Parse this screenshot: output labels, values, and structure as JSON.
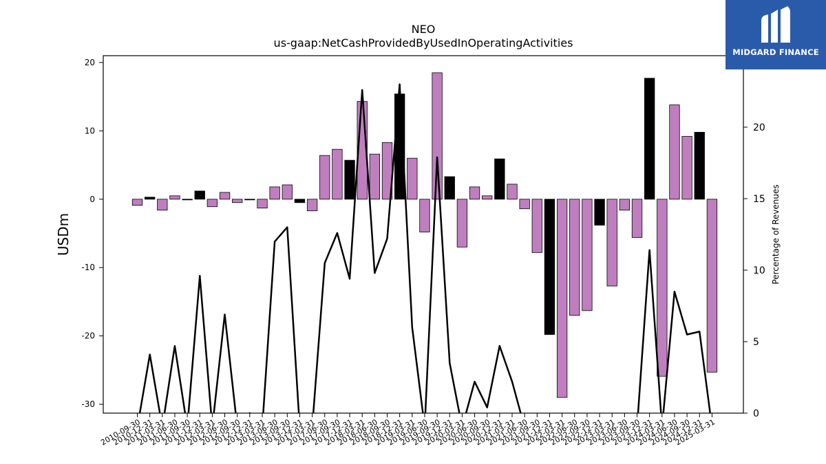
{
  "brand": {
    "name": "MIDGARD FINANCE",
    "bg_color": "#2a5bab"
  },
  "chart_data": {
    "type": "bar",
    "title": "NEO",
    "subtitle": "us-gaap:NetCashProvidedByUsedInOperatingActivities",
    "ylabel": "USDm",
    "y2label": "Percentage of Revenues",
    "ylim": [
      -31.3,
      21
    ],
    "y2lim": [
      0,
      25
    ],
    "yticks": [
      -30,
      -20,
      -10,
      0,
      10,
      20
    ],
    "y2ticks": [
      0,
      5,
      10,
      15,
      20
    ],
    "grid": false,
    "colors": {
      "annual": "#000000",
      "quarter": "#bf7fbf",
      "line": "#000000"
    },
    "categories": [
      "2010-09-30",
      "2010-12-31",
      "2011-03-31",
      "2011-06-30",
      "2011-09-30",
      "2011-12-31",
      "2012-03-31",
      "2012-06-30",
      "2012-09-30",
      "2012-12-31",
      "2013-03-31",
      "2013-06-30",
      "2013-09-30",
      "2013-12-31",
      "2017-03-31",
      "2017-06-30",
      "2017-09-30",
      "2017-12-31",
      "2018-03-31",
      "2018-06-30",
      "2018-09-30",
      "2018-12-31",
      "2019-03-31",
      "2019-06-30",
      "2019-09-30",
      "2019-12-31",
      "2020-03-31",
      "2020-06-30",
      "2020-09-30",
      "2020-12-31",
      "2021-03-31",
      "2021-06-30",
      "2021-09-30",
      "2021-12-31",
      "2022-03-31",
      "2022-06-30",
      "2022-09-30",
      "2022-12-31",
      "2023-03-31",
      "2023-06-30",
      "2023-09-30",
      "2023-12-31",
      "2024-03-31",
      "2024-06-30",
      "2024-09-30",
      "2024-12-31",
      "2025-03-31"
    ],
    "values": [
      -0.9,
      0.3,
      -1.6,
      0.5,
      -0.1,
      1.2,
      -1.1,
      1.0,
      -0.5,
      -0.1,
      -1.3,
      1.8,
      2.1,
      -0.5,
      -1.7,
      6.4,
      7.3,
      5.7,
      14.3,
      6.6,
      8.3,
      15.4,
      6.0,
      -4.8,
      18.5,
      3.3,
      -7.0,
      1.8,
      0.5,
      5.9,
      2.2,
      -1.4,
      -7.8,
      -19.8,
      -29.0,
      -17.0,
      -16.3,
      -3.8,
      -12.7,
      -1.6,
      -5.6,
      17.7,
      -25.9,
      13.8,
      9.2,
      9.8,
      -25.3
    ],
    "annual": [
      false,
      true,
      false,
      false,
      true,
      true,
      false,
      false,
      false,
      true,
      false,
      false,
      false,
      true,
      false,
      false,
      false,
      true,
      false,
      false,
      false,
      true,
      false,
      false,
      false,
      true,
      false,
      false,
      false,
      true,
      false,
      false,
      false,
      true,
      false,
      false,
      false,
      true,
      false,
      false,
      false,
      true,
      false,
      false,
      false,
      true,
      false
    ],
    "pct_revenues": [
      -1,
      4.1,
      -1,
      4.7,
      -1,
      9.6,
      -1,
      6.9,
      -1,
      0,
      -1,
      12.0,
      13.0,
      -1,
      -1,
      10.5,
      12.6,
      9.4,
      22.6,
      9.8,
      12.2,
      23.0,
      6.0,
      -1,
      17.9,
      3.5,
      -1,
      2.2,
      0.4,
      4.7,
      2.2,
      -1,
      -1,
      -1,
      -1,
      -1,
      -1,
      -1,
      -1,
      -1,
      -1,
      11.4,
      -1,
      8.5,
      5.5,
      5.7,
      -1
    ]
  }
}
